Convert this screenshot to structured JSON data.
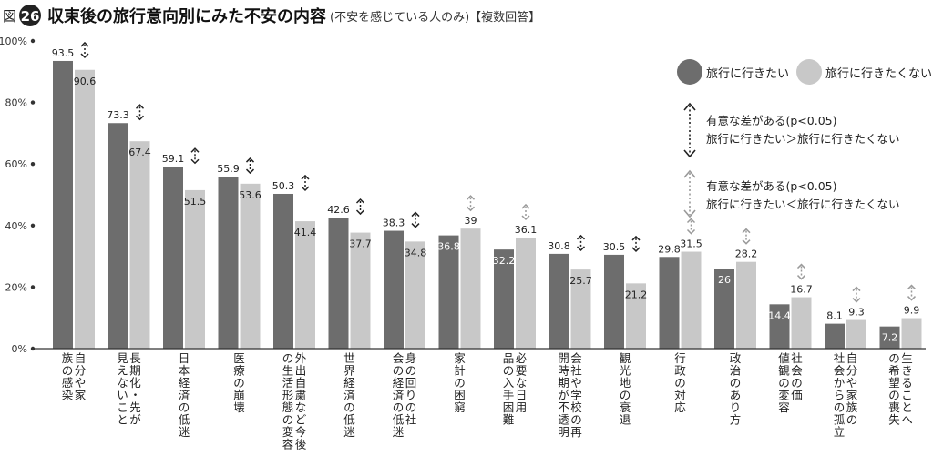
{
  "header": {
    "fig_prefix": "図",
    "fig_number": "26",
    "title": "収束後の旅行意向別にみた不安の内容",
    "subtitle": "(不安を感じている人のみ)【複数回答】"
  },
  "legend": {
    "series1": "旅行に行きたい",
    "series2": "旅行に行きたくない",
    "sig_up_line1": "有意な差がある(p<0.05)",
    "sig_up_line2": "旅行に行きたい＞旅行に行きたくない",
    "sig_down_line1": "有意な差がある(p<0.05)",
    "sig_down_line2": "旅行に行きたい＜旅行に行きたくない"
  },
  "colors": {
    "series1": "#6d6d6d",
    "series2": "#c8c8c8",
    "sig_up": "#222222",
    "sig_down": "#9a9a9a",
    "axis": "#333333"
  },
  "chart_data": {
    "type": "bar",
    "ylim": [
      0,
      100
    ],
    "yticks": [
      "0%",
      "20%",
      "40%",
      "60%",
      "80%",
      "100%"
    ],
    "categories": [
      "自分や家族の感染",
      "長期化・先が見えないこと",
      "日本経済の低迷",
      "医療の崩壊",
      "外出自粛など今後の生活形態の変容",
      "世界経済の低迷",
      "身の回りの社会の経済の低迷",
      "家計の困窮",
      "必要な日用品の入手困難",
      "会社や学校の再開時期が不透明",
      "観光地の衰退",
      "行政の対応",
      "政治のあり方",
      "社会の価値観の変容",
      "自分や家族の社会からの孤立",
      "生きることへの希望の喪失"
    ],
    "series": [
      {
        "name": "旅行に行きたい",
        "values": [
          93.5,
          73.3,
          59.1,
          55.9,
          50.3,
          42.6,
          38.3,
          36.8,
          32.2,
          30.8,
          30.5,
          29.8,
          26.0,
          14.4,
          8.1,
          7.2
        ]
      },
      {
        "name": "旅行に行きたくない",
        "values": [
          90.6,
          67.4,
          51.5,
          53.6,
          41.4,
          37.7,
          34.8,
          39.0,
          36.1,
          25.7,
          21.2,
          31.5,
          28.2,
          16.7,
          9.3,
          9.9
        ]
      }
    ],
    "significance": [
      "up",
      "up",
      "up",
      "up",
      "up",
      "up",
      "up",
      "down",
      "down",
      "up",
      "up",
      "down",
      "down",
      "down",
      "down",
      "down"
    ]
  }
}
